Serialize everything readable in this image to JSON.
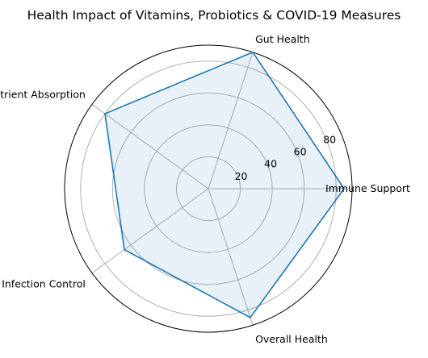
{
  "chart_data": {
    "type": "radar",
    "title": "Health Impact of Vitamins, Probiotics & COVID-19 Measures",
    "categories": [
      "Immune Support",
      "Gut Health",
      "Nutrient Absorption",
      "Infection Control",
      "Overall Health"
    ],
    "series": [
      {
        "values": [
          85,
          90,
          80,
          65,
          85
        ]
      }
    ],
    "rticks": [
      20,
      40,
      60,
      80
    ],
    "rlim": [
      0,
      90
    ],
    "grid": true,
    "colors": {
      "line": "#1f77b4",
      "fill": "#1f77b4",
      "grid": "#b0b0b0",
      "frame": "#000000"
    }
  }
}
